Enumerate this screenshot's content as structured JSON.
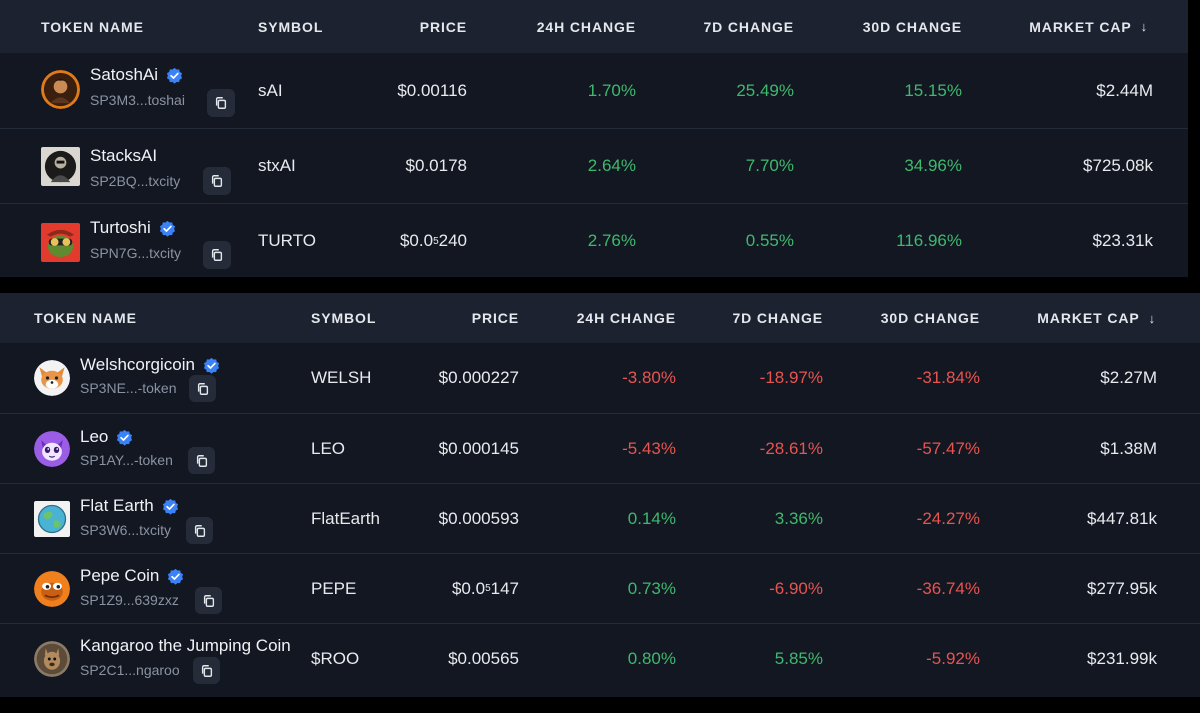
{
  "headers": {
    "token_name": "TOKEN NAME",
    "symbol": "SYMBOL",
    "price": "PRICE",
    "change_24h": "24H CHANGE",
    "change_7d": "7D CHANGE",
    "change_30d": "30D CHANGE",
    "market_cap": "MARKET CAP",
    "sort_icon": "arrow-down-icon"
  },
  "colors": {
    "positive": "#3fb96d",
    "negative": "#e8544f",
    "verified": "#3b82f6",
    "panel_bg": "#121722",
    "header_bg": "#1c2230"
  },
  "top_table": {
    "rows": [
      {
        "name": "SatoshAi",
        "verified": true,
        "address": "SP3M3...toshai",
        "symbol": "sAI",
        "price": "$0.00116",
        "change_24h": "1.70%",
        "change_7d": "25.49%",
        "change_30d": "15.15%",
        "market_cap": "$2.44M"
      },
      {
        "name": "StacksAI",
        "verified": false,
        "address": "SP2BQ...txcity",
        "symbol": "stxAI",
        "price": "$0.0178",
        "change_24h": "2.64%",
        "change_7d": "7.70%",
        "change_30d": "34.96%",
        "market_cap": "$725.08k"
      },
      {
        "name": "Turtoshi",
        "verified": true,
        "address": "SPN7G...txcity",
        "symbol": "TURTO",
        "price_prefix": "$0.0",
        "price_sub": "5",
        "price_suffix": "240",
        "change_24h": "2.76%",
        "change_7d": "0.55%",
        "change_30d": "116.96%",
        "market_cap": "$23.31k"
      }
    ]
  },
  "bottom_table": {
    "rows": [
      {
        "name": "Welshcorgicoin",
        "verified": true,
        "address": "SP3NE...-token",
        "symbol": "WELSH",
        "price": "$0.000227",
        "change_24h": "-3.80%",
        "change_7d": "-18.97%",
        "change_30d": "-31.84%",
        "market_cap": "$2.27M"
      },
      {
        "name": "Leo",
        "verified": true,
        "address": "SP1AY...-token",
        "symbol": "LEO",
        "price": "$0.000145",
        "change_24h": "-5.43%",
        "change_7d": "-28.61%",
        "change_30d": "-57.47%",
        "market_cap": "$1.38M"
      },
      {
        "name": "Flat Earth",
        "verified": true,
        "address": "SP3W6...txcity",
        "symbol": "FlatEarth",
        "price": "$0.000593",
        "change_24h": "0.14%",
        "change_7d": "3.36%",
        "change_30d": "-24.27%",
        "market_cap": "$447.81k"
      },
      {
        "name": "Pepe Coin",
        "verified": true,
        "address": "SP1Z9...639zxz",
        "symbol": "PEPE",
        "price_prefix": "$0.0",
        "price_sub": "5",
        "price_suffix": "147",
        "change_24h": "0.73%",
        "change_7d": "-6.90%",
        "change_30d": "-36.74%",
        "market_cap": "$277.95k"
      },
      {
        "name": "Kangaroo the Jumping Coin",
        "verified": false,
        "address": "SP2C1...ngaroo",
        "symbol": "$ROO",
        "price": "$0.00565",
        "change_24h": "0.80%",
        "change_7d": "5.85%",
        "change_30d": "-5.92%",
        "market_cap": "$231.99k"
      }
    ]
  }
}
